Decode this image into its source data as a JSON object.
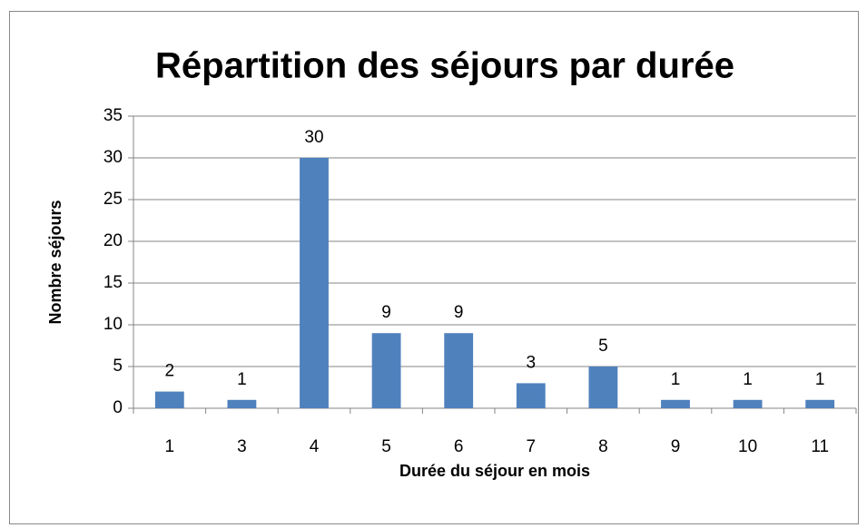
{
  "chart_data": {
    "type": "bar",
    "title": "Répartition des séjours par durée",
    "x_label": "Durée du séjour en mois",
    "y_label": "Nombre séjours",
    "categories": [
      "1",
      "3",
      "4",
      "5",
      "6",
      "7",
      "8",
      "9",
      "10",
      "11"
    ],
    "values": [
      2,
      1,
      30,
      9,
      9,
      3,
      5,
      1,
      1,
      1
    ],
    "color": "#4f81bd",
    "ylim": [
      0,
      35
    ],
    "yticks": [
      0,
      5,
      10,
      15,
      20,
      25,
      30,
      35
    ],
    "grid": true
  }
}
